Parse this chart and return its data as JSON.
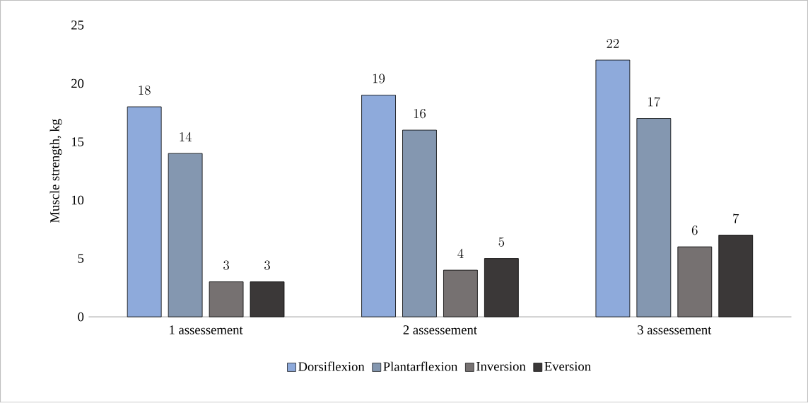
{
  "chart_data": {
    "type": "bar",
    "ylabel": "Muscle strength, kg",
    "categories": [
      "1 assessement",
      "2 assessement",
      "3 assessement"
    ],
    "series": [
      {
        "name": "Dorsiflexion",
        "color": "#8eaadb",
        "values": [
          18,
          19,
          22
        ]
      },
      {
        "name": "Plantarflexion",
        "color": "#8497b0",
        "values": [
          14,
          16,
          17
        ]
      },
      {
        "name": "Inversion",
        "color": "#767171",
        "values": [
          3,
          4,
          6
        ]
      },
      {
        "name": "Eversion",
        "color": "#3b3838",
        "values": [
          3,
          5,
          7
        ]
      }
    ],
    "ylim": [
      0,
      25
    ],
    "yticks": [
      0,
      5,
      10,
      15,
      20,
      25
    ],
    "grid": false,
    "legend": "bottom",
    "data_labels": true
  }
}
